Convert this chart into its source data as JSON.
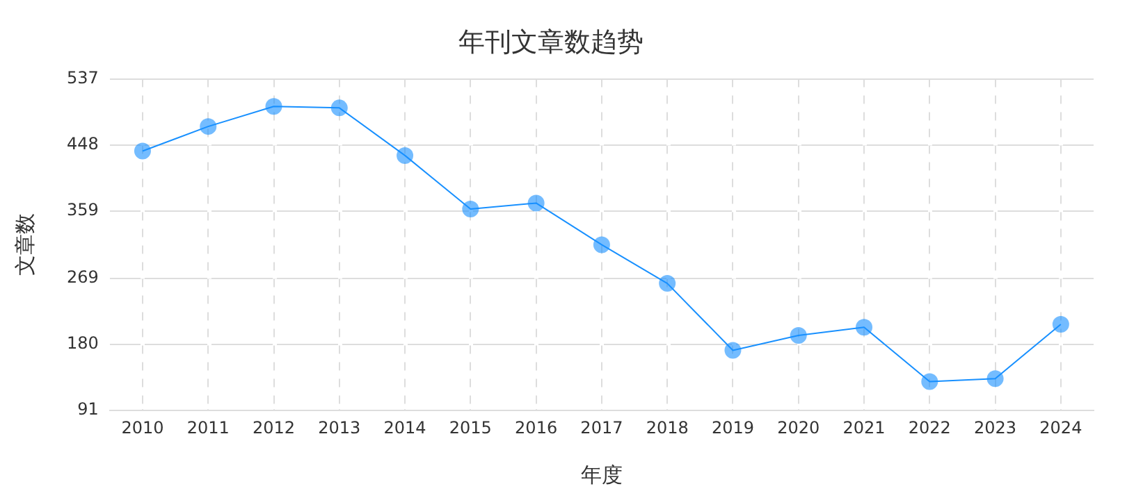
{
  "chart_data": {
    "type": "line",
    "title": "年刊文章数趋势",
    "xlabel": "年度",
    "ylabel": "文章数",
    "categories": [
      "2010",
      "2011",
      "2012",
      "2013",
      "2014",
      "2015",
      "2016",
      "2017",
      "2018",
      "2019",
      "2020",
      "2021",
      "2022",
      "2023",
      "2024"
    ],
    "series": [
      {
        "color": "#1890ff",
        "values": [
          440,
          473,
          500,
          498,
          434,
          362,
          370,
          314,
          262,
          172,
          192,
          203,
          130,
          134,
          207
        ]
      }
    ],
    "ylim": [
      91,
      537
    ],
    "yticks": [
      91,
      180,
      269,
      359,
      448,
      537
    ],
    "grid": true,
    "legend": false,
    "marker": "circle",
    "line_style": "solid"
  }
}
